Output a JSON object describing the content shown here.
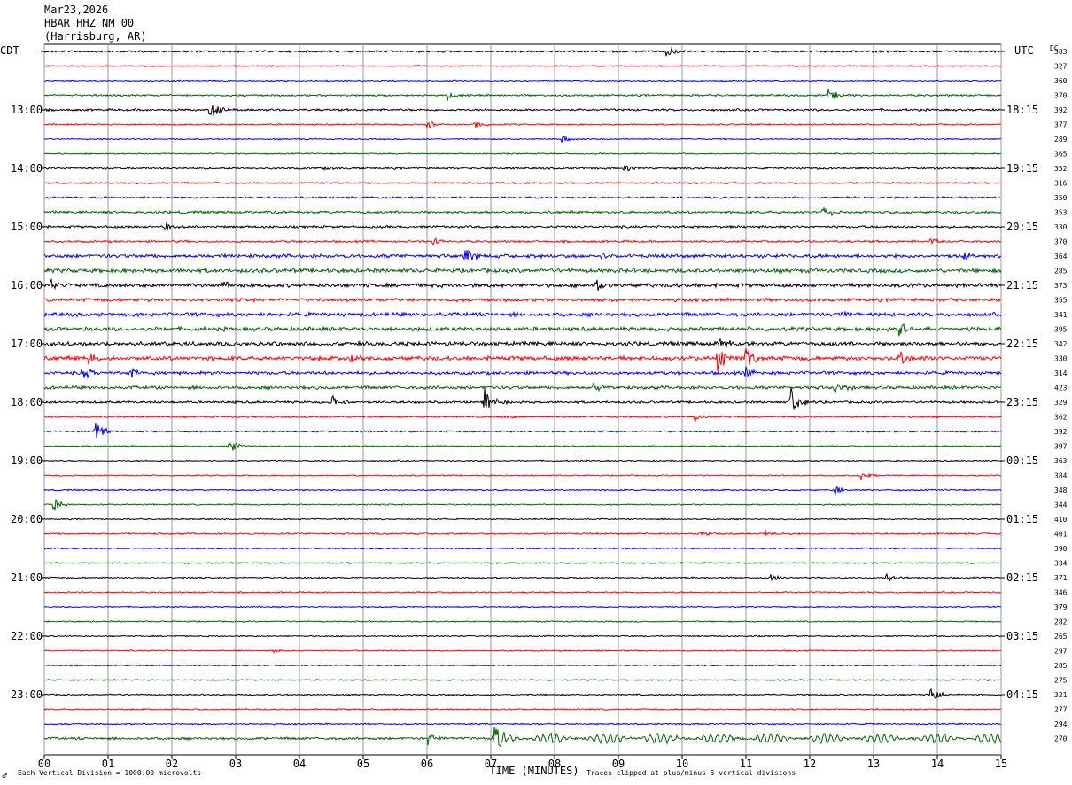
{
  "header": {
    "date": "Mar23,2026",
    "station": "HBAR HHZ NM 00",
    "location": "(Harrisburg, AR)"
  },
  "footer": {
    "vertical_division": "Each Vertical Division = 1000.00 microvolts",
    "clipping": "Traces clipped at plus/minus 5 vertical divisions",
    "corner_glyph": "♂"
  },
  "chart_data": {
    "type": "line",
    "title": "",
    "xlabel": "TIME (MINUTES)",
    "x_ticks": [
      "00",
      "01",
      "02",
      "03",
      "04",
      "05",
      "06",
      "07",
      "08",
      "09",
      "10",
      "11",
      "12",
      "13",
      "14",
      "15"
    ],
    "xlim": [
      0,
      15
    ],
    "left_axis_label": "CDT",
    "right_axis_label": "UTC",
    "dc_label": "DC",
    "left_time_labels": [
      "13:00",
      "14:00",
      "15:00",
      "16:00",
      "17:00",
      "18:00",
      "19:00",
      "20:00",
      "21:00",
      "22:00",
      "23:00"
    ],
    "right_time_labels": [
      "18:15",
      "19:15",
      "20:15",
      "21:15",
      "22:15",
      "23:15",
      "00:15",
      "01:15",
      "02:15",
      "03:15",
      "04:15"
    ],
    "trace_colors": [
      "#000000",
      "#ff0000",
      "#0000ff",
      "#006400"
    ],
    "dc_offsets": [
      "383",
      "327",
      "360",
      "370",
      "392",
      "377",
      "289",
      "365",
      "352",
      "316",
      "350",
      "353",
      "330",
      "370",
      "364",
      "285",
      "373",
      "355",
      "341",
      "395",
      "342",
      "330",
      "314",
      "423",
      "329",
      "362",
      "392",
      "397",
      "363",
      "384",
      "348",
      "344",
      "410",
      "401",
      "390",
      "334",
      "371",
      "346",
      "379",
      "282",
      "265",
      "297",
      "285",
      "275",
      "321",
      "277",
      "294",
      "270"
    ],
    "grid": true,
    "noise_level": [
      0.9,
      0.6,
      0.6,
      0.9,
      1.0,
      0.7,
      0.6,
      0.6,
      0.9,
      0.8,
      0.9,
      1.2,
      1.1,
      1.0,
      1.7,
      1.9,
      1.8,
      1.6,
      1.8,
      1.9,
      1.9,
      2.0,
      1.5,
      1.5,
      1.1,
      0.8,
      0.8,
      0.6,
      0.6,
      0.6,
      0.7,
      0.6,
      0.6,
      0.8,
      0.6,
      0.6,
      0.7,
      0.7,
      0.6,
      0.6,
      0.6,
      0.6,
      0.6,
      0.6,
      0.7,
      0.7,
      0.7,
      1.2
    ],
    "events": [
      {
        "trace": 0,
        "minute": 9.75,
        "amp": 7
      },
      {
        "trace": 3,
        "minute": 6.3,
        "amp": 7
      },
      {
        "trace": 3,
        "minute": 12.3,
        "amp": 10
      },
      {
        "trace": 4,
        "minute": 2.6,
        "amp": 14
      },
      {
        "trace": 5,
        "minute": 6.0,
        "amp": 6
      },
      {
        "trace": 5,
        "minute": 6.75,
        "amp": 5
      },
      {
        "trace": 6,
        "minute": 8.1,
        "amp": 5
      },
      {
        "trace": 8,
        "minute": 4.4,
        "amp": 4
      },
      {
        "trace": 8,
        "minute": 9.1,
        "amp": 5
      },
      {
        "trace": 11,
        "minute": 12.2,
        "amp": 8
      },
      {
        "trace": 12,
        "minute": 1.9,
        "amp": 6
      },
      {
        "trace": 13,
        "minute": 6.1,
        "amp": 5
      },
      {
        "trace": 13,
        "minute": 13.9,
        "amp": 5
      },
      {
        "trace": 14,
        "minute": 6.6,
        "amp": 9
      },
      {
        "trace": 14,
        "minute": 8.7,
        "amp": 7
      },
      {
        "trace": 14,
        "minute": 14.4,
        "amp": 7
      },
      {
        "trace": 16,
        "minute": 0.1,
        "amp": 7
      },
      {
        "trace": 16,
        "minute": 2.8,
        "amp": 6
      },
      {
        "trace": 16,
        "minute": 8.65,
        "amp": 8
      },
      {
        "trace": 18,
        "minute": 12.5,
        "amp": 5
      },
      {
        "trace": 19,
        "minute": 13.4,
        "amp": 8
      },
      {
        "trace": 20,
        "minute": 10.6,
        "amp": 8
      },
      {
        "trace": 21,
        "minute": 0.7,
        "amp": 9
      },
      {
        "trace": 21,
        "minute": 4.8,
        "amp": 8
      },
      {
        "trace": 21,
        "minute": 10.55,
        "amp": 16
      },
      {
        "trace": 21,
        "minute": 11.0,
        "amp": 14
      },
      {
        "trace": 21,
        "minute": 13.4,
        "amp": 9
      },
      {
        "trace": 22,
        "minute": 0.6,
        "amp": 9
      },
      {
        "trace": 22,
        "minute": 1.35,
        "amp": 8
      },
      {
        "trace": 22,
        "minute": 11.0,
        "amp": 8
      },
      {
        "trace": 23,
        "minute": 8.6,
        "amp": 6
      },
      {
        "trace": 23,
        "minute": 12.4,
        "amp": 7
      },
      {
        "trace": 24,
        "minute": 4.5,
        "amp": 10
      },
      {
        "trace": 24,
        "minute": 6.9,
        "amp": 18
      },
      {
        "trace": 24,
        "minute": 11.7,
        "amp": 22
      },
      {
        "trace": 25,
        "minute": 7.2,
        "amp": 5
      },
      {
        "trace": 25,
        "minute": 10.2,
        "amp": 5
      },
      {
        "trace": 26,
        "minute": 0.8,
        "amp": 12
      },
      {
        "trace": 27,
        "minute": 2.9,
        "amp": 9
      },
      {
        "trace": 29,
        "minute": 12.8,
        "amp": 6
      },
      {
        "trace": 30,
        "minute": 12.4,
        "amp": 5
      },
      {
        "trace": 31,
        "minute": 0.15,
        "amp": 9
      },
      {
        "trace": 33,
        "minute": 10.3,
        "amp": 5
      },
      {
        "trace": 33,
        "minute": 11.3,
        "amp": 5
      },
      {
        "trace": 36,
        "minute": 11.4,
        "amp": 6
      },
      {
        "trace": 36,
        "minute": 13.2,
        "amp": 8
      },
      {
        "trace": 41,
        "minute": 3.6,
        "amp": 3
      },
      {
        "trace": 44,
        "minute": 13.9,
        "amp": 9
      },
      {
        "trace": 47,
        "minute": 6.0,
        "amp": 9
      },
      {
        "trace": 47,
        "minute": 7.05,
        "amp": 16
      }
    ],
    "late_oscillation": {
      "trace": 47,
      "from_minute": 7.1,
      "amp": 6
    }
  }
}
